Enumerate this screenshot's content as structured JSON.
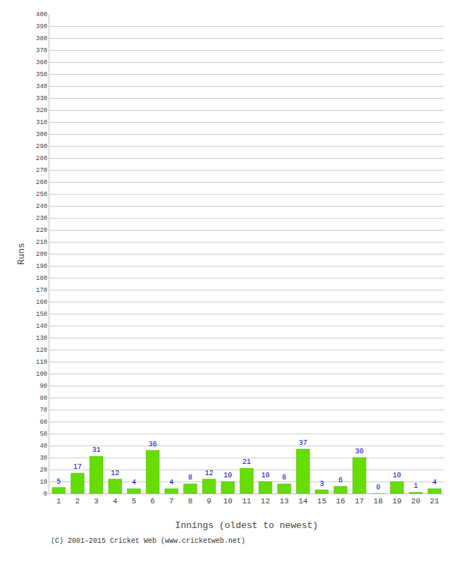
{
  "chart_data": {
    "type": "bar",
    "xlabel": "Innings (oldest to newest)",
    "ylabel": "Runs",
    "categories": [
      "1",
      "2",
      "3",
      "4",
      "5",
      "6",
      "7",
      "8",
      "9",
      "10",
      "11",
      "12",
      "13",
      "14",
      "15",
      "16",
      "17",
      "18",
      "19",
      "20",
      "21"
    ],
    "values": [
      5,
      17,
      31,
      12,
      4,
      36,
      4,
      8,
      12,
      10,
      21,
      10,
      8,
      37,
      3,
      6,
      30,
      0,
      10,
      1,
      4
    ],
    "color": "#66dd00",
    "ylim": [
      0,
      400
    ],
    "yticks": [
      0,
      10,
      20,
      30,
      40,
      50,
      60,
      70,
      80,
      90,
      100,
      110,
      120,
      130,
      140,
      150,
      160,
      170,
      180,
      190,
      200,
      210,
      220,
      230,
      240,
      250,
      260,
      270,
      280,
      290,
      300,
      310,
      320,
      330,
      340,
      350,
      360,
      370,
      380,
      390,
      400
    ],
    "grid": true,
    "data_labels": true,
    "annotations": [
      "(C) 2001-2015 Cricket Web (www.cricketweb.net)"
    ]
  }
}
